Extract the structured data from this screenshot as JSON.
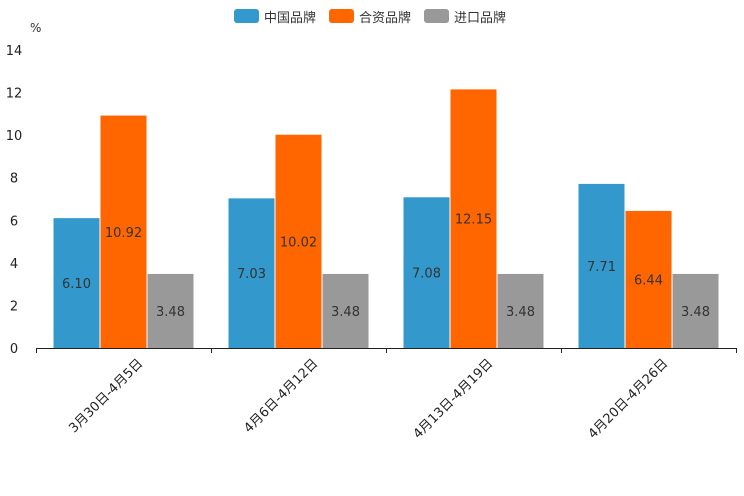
{
  "chart_data": {
    "type": "bar",
    "unit_label": "%",
    "categories": [
      "3月30日-4月5日",
      "4月6日-4月12日",
      "4月13日-4月19日",
      "4月20日-4月26日"
    ],
    "series": [
      {
        "name": "中国品牌",
        "color": "#3399CC",
        "values": [
          6.1,
          7.03,
          7.08,
          7.71
        ],
        "labels": [
          "6.10",
          "7.03",
          "7.08",
          "7.71"
        ]
      },
      {
        "name": "合资品牌",
        "color": "#FF6600",
        "values": [
          10.92,
          10.02,
          12.15,
          6.44
        ],
        "labels": [
          "10.92",
          "10.02",
          "12.15",
          "6.44"
        ]
      },
      {
        "name": "进口品牌",
        "color": "#999999",
        "values": [
          3.48,
          3.48,
          3.48,
          3.48
        ],
        "labels": [
          "3.48",
          "3.48",
          "3.48",
          "3.48"
        ]
      }
    ],
    "yticks": [
      "0",
      "2",
      "4",
      "6",
      "8",
      "10",
      "12",
      "14"
    ],
    "ylim": [
      0,
      14
    ],
    "legend_position": "top-center",
    "grid": false
  }
}
